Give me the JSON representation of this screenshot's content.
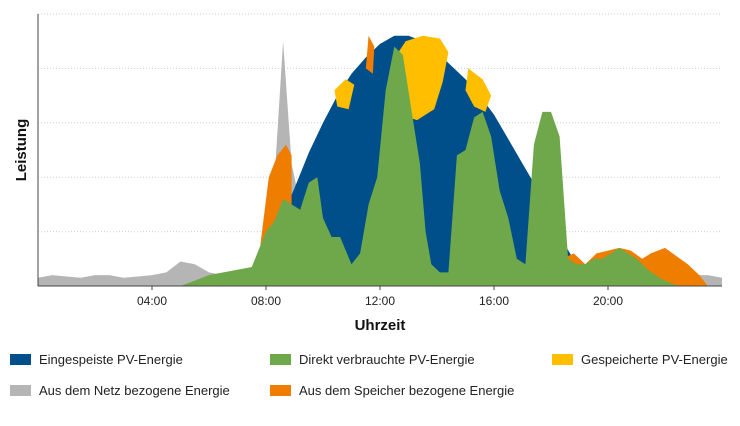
{
  "chart_data": {
    "type": "area",
    "xlabel": "Uhrzeit",
    "ylabel": "Leistung",
    "xlim": [
      0,
      24
    ],
    "x_ticks": [
      "04:00",
      "08:00",
      "12:00",
      "16:00",
      "20:00"
    ],
    "x_tick_values": [
      4,
      8,
      12,
      16,
      20
    ],
    "ylim": [
      0,
      100
    ],
    "y_gridlines": [
      20,
      40,
      60,
      80,
      100
    ],
    "y_tick_labels_shown": false,
    "grid": "horizontal",
    "legend_placement": "bottom",
    "series": [
      {
        "name": "Eingespeiste PV-Energie",
        "color": "#004f8a",
        "points": [
          [
            6.6,
            0
          ],
          [
            7,
            2
          ],
          [
            7.5,
            5
          ],
          [
            8,
            12
          ],
          [
            8.5,
            24
          ],
          [
            9,
            36
          ],
          [
            9.5,
            49
          ],
          [
            10,
            60
          ],
          [
            10.5,
            70
          ],
          [
            11,
            78
          ],
          [
            11.5,
            84
          ],
          [
            12,
            89
          ],
          [
            12.5,
            92
          ],
          [
            13,
            92
          ],
          [
            13.5,
            90
          ],
          [
            14,
            86
          ],
          [
            14.5,
            81
          ],
          [
            15,
            76
          ],
          [
            15.5,
            70
          ],
          [
            16,
            63
          ],
          [
            16.5,
            54
          ],
          [
            17,
            45
          ],
          [
            17.5,
            36
          ],
          [
            18,
            25
          ],
          [
            18.5,
            15
          ],
          [
            19,
            6
          ],
          [
            19.6,
            0
          ]
        ]
      },
      {
        "name": "Direkt verbrauchte PV-Energie",
        "color": "#6ea84a",
        "points": [
          [
            5,
            0
          ],
          [
            5.5,
            2
          ],
          [
            6,
            4
          ],
          [
            6.5,
            5
          ],
          [
            7,
            6
          ],
          [
            7.5,
            7
          ],
          [
            8,
            20
          ],
          [
            8.3,
            24
          ],
          [
            8.6,
            32
          ],
          [
            8.9,
            30
          ],
          [
            9.2,
            28
          ],
          [
            9.5,
            38
          ],
          [
            9.8,
            40
          ],
          [
            10,
            25
          ],
          [
            10.3,
            18
          ],
          [
            10.6,
            18
          ],
          [
            11,
            8
          ],
          [
            11.3,
            12
          ],
          [
            11.6,
            30
          ],
          [
            11.9,
            40
          ],
          [
            12.2,
            72
          ],
          [
            12.5,
            88
          ],
          [
            12.8,
            85
          ],
          [
            13.1,
            65
          ],
          [
            13.4,
            45
          ],
          [
            13.6,
            20
          ],
          [
            13.8,
            8
          ],
          [
            14.1,
            5
          ],
          [
            14.4,
            5
          ],
          [
            14.7,
            48
          ],
          [
            15,
            50
          ],
          [
            15.3,
            62
          ],
          [
            15.6,
            64
          ],
          [
            15.9,
            55
          ],
          [
            16.2,
            35
          ],
          [
            16.5,
            25
          ],
          [
            16.8,
            10
          ],
          [
            17.1,
            8
          ],
          [
            17.4,
            52
          ],
          [
            17.7,
            64
          ],
          [
            18,
            64
          ],
          [
            18.3,
            55
          ],
          [
            18.6,
            10
          ],
          [
            18.9,
            8
          ],
          [
            19.2,
            8
          ],
          [
            19.5,
            10
          ],
          [
            19.8,
            10
          ],
          [
            20.1,
            12
          ],
          [
            20.4,
            14
          ],
          [
            20.7,
            12
          ],
          [
            21,
            10
          ],
          [
            21.4,
            6
          ],
          [
            21.8,
            3
          ],
          [
            22.2,
            1
          ],
          [
            22.5,
            0
          ]
        ]
      },
      {
        "name": "Gespeicherte PV-Energie",
        "color": "#ffbe00",
        "regions": [
          {
            "label_hint": "",
            "points": [
              [
                10.4,
                72
              ],
              [
                10.8,
                76
              ],
              [
                11.1,
                74
              ],
              [
                10.9,
                65
              ],
              [
                10.5,
                66
              ]
            ]
          },
          {
            "label_hint": "",
            "points": [
              [
                12.4,
                82
              ],
              [
                12.9,
                90
              ],
              [
                13.5,
                92
              ],
              [
                14.1,
                91
              ],
              [
                14.4,
                86
              ],
              [
                14.2,
                75
              ],
              [
                13.9,
                65
              ],
              [
                13.6,
                63
              ],
              [
                13.3,
                61
              ],
              [
                13,
                62
              ],
              [
                12.7,
                68
              ]
            ]
          },
          {
            "label_hint": "",
            "points": [
              [
                15.1,
                80
              ],
              [
                15.6,
                76
              ],
              [
                15.9,
                70
              ],
              [
                15.7,
                64
              ],
              [
                15.3,
                66
              ],
              [
                15.0,
                72
              ]
            ]
          }
        ]
      },
      {
        "name": "Aus dem Netz bezogene Energie",
        "color": "#b5b5b5",
        "points": [
          [
            0,
            3
          ],
          [
            0.5,
            4
          ],
          [
            1,
            3.5
          ],
          [
            1.5,
            3
          ],
          [
            2,
            4
          ],
          [
            2.5,
            4
          ],
          [
            3,
            3
          ],
          [
            3.5,
            3.5
          ],
          [
            4,
            4
          ],
          [
            4.5,
            5
          ],
          [
            5,
            9
          ],
          [
            5.5,
            8
          ],
          [
            6,
            5
          ],
          [
            6.5,
            4
          ],
          [
            7,
            4
          ],
          [
            7.5,
            5
          ],
          [
            8,
            8
          ],
          [
            8.3,
            40
          ],
          [
            8.6,
            90
          ],
          [
            8.9,
            45
          ],
          [
            9.2,
            30
          ],
          [
            9.5,
            12
          ],
          [
            10,
            8
          ],
          [
            11,
            8
          ],
          [
            12,
            8
          ],
          [
            13,
            8
          ],
          [
            14,
            8
          ],
          [
            15,
            8
          ],
          [
            16,
            8
          ],
          [
            17,
            8
          ],
          [
            18,
            8
          ],
          [
            19,
            8
          ],
          [
            20,
            7
          ],
          [
            21,
            6
          ],
          [
            22,
            5
          ],
          [
            22.5,
            4
          ],
          [
            23,
            4
          ],
          [
            23.5,
            4
          ],
          [
            24,
            3
          ]
        ]
      },
      {
        "name": "Aus dem Speicher bezogene Energie",
        "color": "#ee7d00",
        "regions": [
          {
            "label_hint": "",
            "points": [
              [
                7.8,
                15
              ],
              [
                8.1,
                40
              ],
              [
                8.4,
                48
              ],
              [
                8.7,
                52
              ],
              [
                8.9,
                48
              ],
              [
                8.9,
                25
              ],
              [
                8.5,
                22
              ],
              [
                8.1,
                18
              ],
              [
                7.9,
                12
              ]
            ]
          },
          {
            "label_hint": "",
            "points": [
              [
                11.5,
                80
              ],
              [
                11.6,
                92
              ],
              [
                11.8,
                88
              ],
              [
                11.75,
                78
              ]
            ]
          },
          {
            "label_hint": "",
            "points": [
              [
                18.4,
                10
              ],
              [
                18.8,
                12
              ],
              [
                19.2,
                8
              ],
              [
                19.6,
                12
              ],
              [
                20,
                13
              ],
              [
                20.4,
                14
              ],
              [
                20.8,
                13
              ],
              [
                21.2,
                10
              ],
              [
                21.5,
                12
              ],
              [
                22,
                14
              ],
              [
                22.4,
                11
              ],
              [
                22.8,
                8
              ],
              [
                23.2,
                4
              ],
              [
                23.5,
                0
              ],
              [
                18.6,
                0
              ]
            ]
          }
        ]
      }
    ]
  },
  "legend": [
    {
      "label": "Eingespeiste PV-Energie",
      "color": "#004f8a"
    },
    {
      "label": "Direkt verbrauchte PV-Energie",
      "color": "#6ea84a"
    },
    {
      "label": "Gespeicherte PV-Energie",
      "color": "#ffbe00"
    },
    {
      "label": "Aus dem Netz bezogene Energie",
      "color": "#b5b5b5"
    },
    {
      "label": "Aus dem Speicher bezogene Energie",
      "color": "#ee7d00"
    }
  ]
}
